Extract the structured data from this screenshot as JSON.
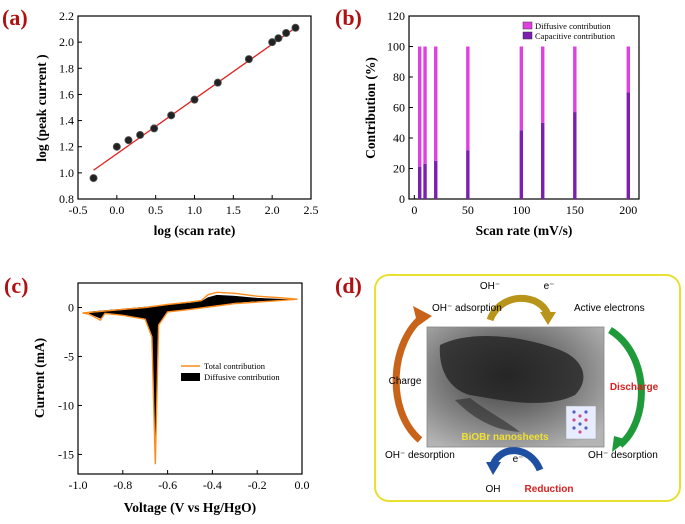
{
  "panels": {
    "a": "(a)",
    "b": "(b)",
    "c": "(c)",
    "d": "(d)"
  },
  "chart_data": [
    {
      "type": "scatter",
      "xlabel": "log (scan rate)",
      "ylabel": "log (peak current )",
      "xlim": [
        -0.5,
        2.5
      ],
      "ylim": [
        0.8,
        2.2
      ],
      "x_ticks": [
        "-0.5",
        "0.0",
        "0.5",
        "1.0",
        "1.5",
        "2.0",
        "2.5"
      ],
      "y_ticks": [
        "0.8",
        "1.0",
        "1.2",
        "1.4",
        "1.6",
        "1.8",
        "2.0",
        "2.2"
      ],
      "points": [
        {
          "x": -0.3,
          "y": 0.96
        },
        {
          "x": 0.0,
          "y": 1.2
        },
        {
          "x": 0.15,
          "y": 1.25
        },
        {
          "x": 0.3,
          "y": 1.29
        },
        {
          "x": 0.48,
          "y": 1.34
        },
        {
          "x": 0.7,
          "y": 1.44
        },
        {
          "x": 1.0,
          "y": 1.56
        },
        {
          "x": 1.3,
          "y": 1.69
        },
        {
          "x": 1.7,
          "y": 1.87
        },
        {
          "x": 2.0,
          "y": 2.0
        },
        {
          "x": 2.08,
          "y": 2.03
        },
        {
          "x": 2.18,
          "y": 2.07
        },
        {
          "x": 2.3,
          "y": 2.11
        }
      ],
      "fit": [
        {
          "x": -0.3,
          "y": 1.02
        },
        {
          "x": 2.3,
          "y": 2.11
        }
      ],
      "colors": {
        "points": "#222222",
        "fit": "#e02020"
      }
    },
    {
      "type": "bar",
      "stacked": true,
      "xlabel": "Scan rate (mV/s)",
      "ylabel": "Contribution (%)",
      "xlim": [
        -5,
        210
      ],
      "ylim": [
        0,
        120
      ],
      "x_ticks": [
        "0",
        "50",
        "100",
        "150",
        "200"
      ],
      "y_ticks": [
        "0",
        "20",
        "40",
        "60",
        "80",
        "100",
        "120"
      ],
      "x": [
        5,
        10,
        20,
        50,
        100,
        120,
        150,
        200
      ],
      "series": [
        {
          "name": "Capacitive contribution",
          "values": [
            21,
            23,
            25,
            32,
            45,
            50,
            57,
            70
          ],
          "color": "#7a1fb0"
        },
        {
          "name": "Diffusive contribution",
          "values": [
            79,
            77,
            75,
            68,
            55,
            50,
            43,
            30
          ],
          "color": "#e040e0"
        }
      ],
      "legend": "top-right"
    },
    {
      "type": "line",
      "xlabel": "Voltage (V vs Hg/HgO)",
      "ylabel": "Current (mA)",
      "xlim": [
        -1.0,
        0.0
      ],
      "ylim": [
        -17,
        2.5
      ],
      "x_ticks": [
        "-1.0",
        "-0.8",
        "-0.6",
        "-0.4",
        "-0.2",
        "0.0"
      ],
      "y_ticks": [
        "0",
        "-5",
        "-10",
        "-15"
      ],
      "series": [
        {
          "name": "Total contribution",
          "color": "#ff8c1a"
        },
        {
          "name": "Diffusive contribution",
          "color": "#000000"
        }
      ],
      "total_upper": [
        [
          -0.98,
          -0.55
        ],
        [
          -0.9,
          -0.4
        ],
        [
          -0.8,
          -0.2
        ],
        [
          -0.7,
          0.0
        ],
        [
          -0.6,
          0.3
        ],
        [
          -0.5,
          0.55
        ],
        [
          -0.45,
          0.7
        ],
        [
          -0.42,
          1.3
        ],
        [
          -0.38,
          1.55
        ],
        [
          -0.3,
          1.45
        ],
        [
          -0.2,
          1.15
        ],
        [
          -0.1,
          1.0
        ],
        [
          -0.02,
          0.85
        ]
      ],
      "total_lower": [
        [
          -0.02,
          0.85
        ],
        [
          -0.1,
          0.7
        ],
        [
          -0.2,
          0.55
        ],
        [
          -0.3,
          0.4
        ],
        [
          -0.4,
          0.1
        ],
        [
          -0.5,
          -0.2
        ],
        [
          -0.6,
          -0.45
        ],
        [
          -0.64,
          -1.8
        ],
        [
          -0.655,
          -16.0
        ],
        [
          -0.67,
          -3.0
        ],
        [
          -0.7,
          -1.2
        ],
        [
          -0.8,
          -0.8
        ],
        [
          -0.88,
          -0.6
        ],
        [
          -0.9,
          -1.3
        ],
        [
          -0.95,
          -0.7
        ],
        [
          -0.98,
          -0.55
        ]
      ],
      "diff_upper": [
        [
          -0.95,
          -0.45
        ],
        [
          -0.9,
          -0.35
        ],
        [
          -0.8,
          -0.15
        ],
        [
          -0.7,
          0.05
        ],
        [
          -0.6,
          0.25
        ],
        [
          -0.5,
          0.45
        ],
        [
          -0.45,
          0.6
        ],
        [
          -0.42,
          1.0
        ],
        [
          -0.38,
          1.25
        ],
        [
          -0.3,
          1.15
        ],
        [
          -0.2,
          0.95
        ],
        [
          -0.1,
          0.85
        ],
        [
          -0.03,
          0.8
        ]
      ],
      "diff_lower": [
        [
          -0.03,
          0.8
        ],
        [
          -0.1,
          0.75
        ],
        [
          -0.2,
          0.65
        ],
        [
          -0.3,
          0.5
        ],
        [
          -0.4,
          0.15
        ],
        [
          -0.5,
          -0.15
        ],
        [
          -0.6,
          -0.4
        ],
        [
          -0.64,
          -1.7
        ],
        [
          -0.655,
          -15.3
        ],
        [
          -0.67,
          -2.8
        ],
        [
          -0.7,
          -1.1
        ],
        [
          -0.8,
          -0.75
        ],
        [
          -0.88,
          -0.55
        ],
        [
          -0.9,
          -1.1
        ],
        [
          -0.95,
          -0.6
        ]
      ]
    }
  ],
  "diagram": {
    "oh_top": "OH⁻",
    "e_top": "e⁻",
    "oh_adsorption": "OH⁻ adsorption",
    "active_electrons": "Active electrons",
    "charge": "Charge",
    "discharge": "Discharge",
    "oh_desorption_left": "OH⁻ desorption",
    "oh_desorption_right": "OH⁻ desorption",
    "e_bottom": "e⁻",
    "oh_bottom": "OH",
    "reduction": "Reduction",
    "image_label": "BiOBr nanosheets",
    "colors": {
      "frame": "#e8e030",
      "charge_arrow": "#c8641a",
      "discharge_arrow": "#1e9a3a",
      "top_arrow": "#b8941a",
      "bottom_arrow": "#1f4fa0"
    }
  }
}
